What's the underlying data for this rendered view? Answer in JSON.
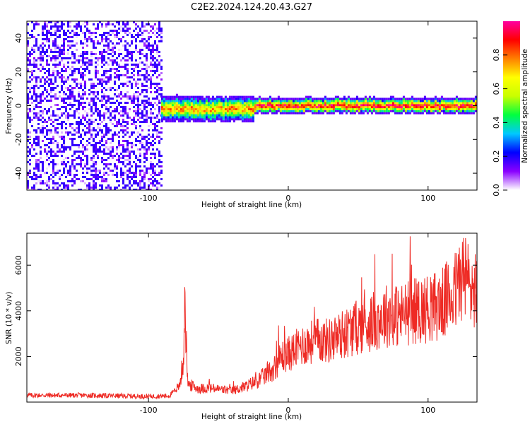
{
  "figure": {
    "title": "C2E2.2024.124.20.43.G27"
  },
  "chart_data": [
    {
      "type": "heatmap",
      "name": "spectrogram",
      "xlabel": "Height of straight line (km)",
      "ylabel": "Frequency (Hz)",
      "xlim": [
        -187,
        135
      ],
      "ylim": [
        -50,
        50
      ],
      "xticks": [
        -100,
        0,
        100
      ],
      "xtick_labels": [
        "-100",
        "0",
        "100"
      ],
      "yticks": [
        -40,
        -20,
        0,
        20,
        40
      ],
      "ytick_labels": [
        "-40",
        "-20",
        "0",
        "20",
        "40"
      ],
      "colorbar": {
        "label": "Normalized spectral amplitude",
        "range": [
          0.0,
          1.0
        ],
        "ticks": [
          0.0,
          0.2,
          0.4,
          0.6,
          0.8
        ],
        "tick_labels": [
          "0.0",
          "0.2",
          "0.4",
          "0.6",
          "0.8"
        ],
        "colormap": [
          "#ffffff",
          "#8a00ff",
          "#0000ff",
          "#00c8ff",
          "#00ff40",
          "#c8ff00",
          "#ffff00",
          "#ff8000",
          "#ff0000",
          "#ff00a0"
        ]
      },
      "features": {
        "noise_region_x": [
          -187,
          -91
        ],
        "noise_amplitude": 0.3,
        "signal_region_x": [
          -91,
          135
        ],
        "signal_center_hz": 0,
        "signal_band_hz": 6,
        "signal_peak_amplitude": 0.9
      },
      "grid": false
    },
    {
      "type": "line",
      "name": "snr",
      "xlabel": "Height of straight line (km)",
      "ylabel": "SNR (10 * v/v)",
      "xlim": [
        -187,
        135
      ],
      "ylim": [
        0,
        7400
      ],
      "xticks": [
        -100,
        0,
        100
      ],
      "xtick_labels": [
        "-100",
        "0",
        "100"
      ],
      "yticks": [
        2000,
        4000,
        6000
      ],
      "ytick_labels": [
        "2000",
        "4000",
        "6000"
      ],
      "line_color": "#ee2a24",
      "series_envelope": {
        "x": [
          -187,
          -150,
          -100,
          -85,
          -78,
          -75,
          -74,
          -72,
          -65,
          -55,
          -40,
          -30,
          -20,
          -10,
          -5,
          0,
          10,
          20,
          30,
          40,
          50,
          60,
          70,
          80,
          90,
          100,
          110,
          120,
          125,
          130,
          135
        ],
        "y": [
          300,
          300,
          250,
          280,
          700,
          1800,
          4900,
          800,
          600,
          600,
          500,
          700,
          1000,
          1500,
          2000,
          2100,
          2500,
          2700,
          2700,
          3000,
          3300,
          3500,
          3800,
          3800,
          4000,
          4100,
          4300,
          4900,
          5600,
          5100,
          4900
        ]
      },
      "grid": false
    }
  ]
}
